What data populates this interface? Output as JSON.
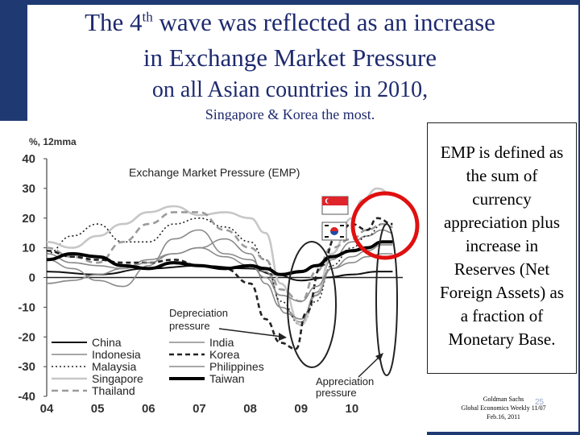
{
  "slide": {
    "title_line1_pre": "The 4",
    "title_sup": "th",
    "title_line1_post": " wave was reflected as an increase",
    "title_line2": "in Exchange Market Pressure",
    "title_line3": "on all Asian countries in 2010,",
    "subtitle": "Singapore & Korea the most."
  },
  "callout": {
    "text": "EMP is defined as the sum of currency appreciation plus increase in Reserves (Net Foreign Assets) as a fraction of Monetary Base."
  },
  "source": {
    "line1": "Goldman Sachs",
    "line2": "Global Economics Weekly 11/07",
    "line3": "Feb.16, 2011",
    "page": "25"
  },
  "colors": {
    "slide_border": "#1f3a73",
    "title": "#1e2a6e",
    "circle": "#e01010"
  },
  "chart_data": {
    "type": "line",
    "title": "Exchange Market Pressure (EMP)",
    "ylabel": "%, 12mma",
    "ylim": [
      -40,
      40
    ],
    "yticks": [
      40,
      30,
      20,
      10,
      0,
      -10,
      -20,
      -30,
      -40
    ],
    "xticks": [
      "04",
      "05",
      "06",
      "07",
      "08",
      "09",
      "10"
    ],
    "xlim": [
      2004,
      2011
    ],
    "annotations": {
      "depreciation": "Depreciation pressure",
      "appreciation": "Appreciation pressure"
    },
    "series": [
      {
        "name": "China",
        "style": "thin-black",
        "x": [
          2004,
          2005,
          2006,
          2007,
          2008,
          2008.5,
          2009,
          2009.5,
          2010,
          2010.5,
          2010.8
        ],
        "values": [
          2,
          1,
          3,
          4,
          3,
          1,
          -1,
          0,
          1,
          2,
          2
        ]
      },
      {
        "name": "Indonesia",
        "style": "gray",
        "x": [
          2004,
          2004.5,
          2005,
          2005.5,
          2006,
          2006.5,
          2007,
          2007.5,
          2008,
          2008.3,
          2008.7,
          2009,
          2009.3,
          2009.6,
          2010,
          2010.3,
          2010.6,
          2010.8
        ],
        "values": [
          6,
          3,
          -1,
          -3,
          4,
          13,
          16,
          8,
          6,
          2,
          -12,
          -15,
          -5,
          6,
          12,
          14,
          16,
          15
        ]
      },
      {
        "name": "Malaysia",
        "style": "dotted-black",
        "x": [
          2004,
          2004.5,
          2005,
          2005.5,
          2006,
          2006.5,
          2007,
          2007.5,
          2008,
          2008.3,
          2008.6,
          2009,
          2009.3,
          2009.6,
          2010,
          2010.3,
          2010.6,
          2010.8
        ],
        "values": [
          8,
          14,
          18,
          12,
          12,
          18,
          20,
          17,
          12,
          6,
          -8,
          -16,
          -8,
          4,
          10,
          14,
          18,
          18
        ]
      },
      {
        "name": "Singapore",
        "style": "light-gray",
        "x": [
          2004,
          2004.5,
          2005,
          2005.5,
          2006,
          2006.5,
          2007,
          2007.5,
          2008,
          2008.3,
          2008.6,
          2009,
          2009.3,
          2009.6,
          2010,
          2010.2,
          2010.5,
          2010.8
        ],
        "values": [
          12,
          10,
          14,
          18,
          22,
          24,
          21,
          22,
          20,
          15,
          -2,
          -16,
          -6,
          8,
          20,
          26,
          30,
          28
        ]
      },
      {
        "name": "Thailand",
        "style": "dashed-gray",
        "x": [
          2004,
          2004.5,
          2005,
          2005.5,
          2006,
          2006.5,
          2007,
          2007.5,
          2008,
          2008.3,
          2008.6,
          2009,
          2009.3,
          2009.6,
          2010,
          2010.3,
          2010.6,
          2010.8
        ],
        "values": [
          10,
          7,
          5,
          12,
          18,
          22,
          22,
          16,
          10,
          6,
          -4,
          -8,
          2,
          10,
          13,
          16,
          18,
          17
        ]
      },
      {
        "name": "India",
        "style": "gray",
        "x": [
          2004,
          2004.5,
          2005,
          2005.5,
          2006,
          2006.5,
          2007,
          2007.5,
          2008,
          2008.3,
          2008.6,
          2009,
          2009.3,
          2009.6,
          2010,
          2010.3,
          2010.6,
          2010.8
        ],
        "values": [
          8,
          5,
          4,
          3,
          6,
          8,
          10,
          13,
          8,
          -2,
          -10,
          -14,
          -6,
          3,
          5,
          7,
          8,
          8
        ]
      },
      {
        "name": "Korea",
        "style": "dashed-black",
        "x": [
          2004,
          2004.5,
          2005,
          2005.5,
          2006,
          2006.5,
          2007,
          2007.5,
          2008,
          2008.3,
          2008.6,
          2008.9,
          2009.1,
          2009.4,
          2009.7,
          2010,
          2010.3,
          2010.5,
          2010.8
        ],
        "values": [
          9,
          7,
          6,
          5,
          5,
          6,
          4,
          3,
          -2,
          -14,
          -22,
          -24,
          -12,
          4,
          14,
          18,
          16,
          20,
          18
        ]
      },
      {
        "name": "Philippines",
        "style": "gray",
        "x": [
          2004,
          2004.5,
          2005,
          2005.5,
          2006,
          2006.5,
          2007,
          2007.5,
          2008,
          2008.3,
          2008.6,
          2009,
          2009.3,
          2009.6,
          2010,
          2010.3,
          2010.6,
          2010.8
        ],
        "values": [
          -2,
          -1,
          1,
          3,
          5,
          8,
          10,
          7,
          4,
          0,
          -6,
          -8,
          -3,
          3,
          7,
          9,
          11,
          11
        ]
      },
      {
        "name": "Taiwan",
        "style": "thick-black",
        "x": [
          2004,
          2004.5,
          2005,
          2005.5,
          2006,
          2006.5,
          2007,
          2007.5,
          2008,
          2008.3,
          2008.6,
          2009,
          2009.3,
          2009.6,
          2010,
          2010.3,
          2010.6,
          2010.8
        ],
        "values": [
          6,
          8,
          7,
          4,
          3,
          5,
          4,
          3,
          4,
          3,
          1,
          2,
          4,
          7,
          9,
          10,
          12,
          12
        ]
      }
    ]
  }
}
